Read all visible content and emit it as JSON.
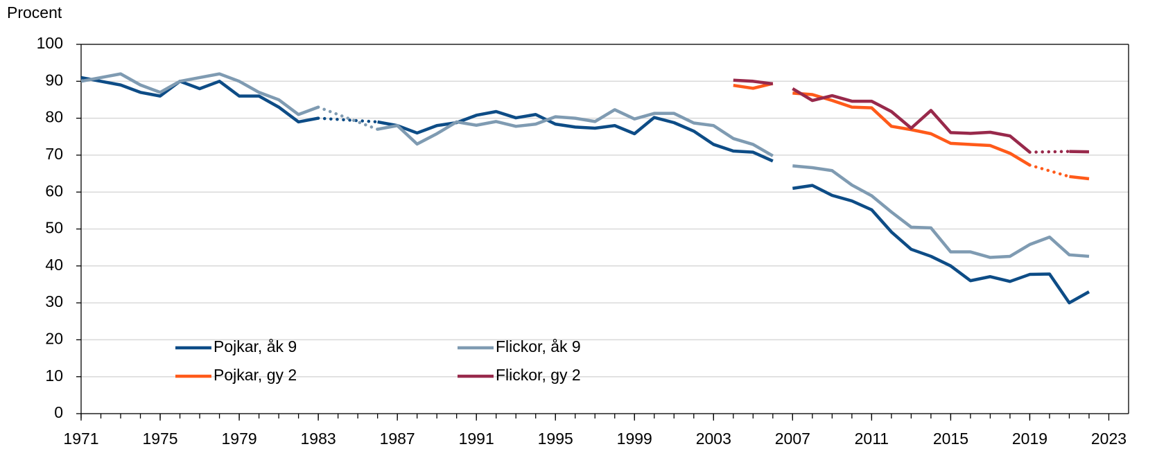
{
  "chart_data": {
    "type": "line",
    "y_axis_label": "Procent",
    "x": [
      1971,
      1972,
      1973,
      1974,
      1975,
      1976,
      1977,
      1978,
      1979,
      1980,
      1981,
      1982,
      1983,
      1984,
      1985,
      1986,
      1987,
      1988,
      1989,
      1990,
      1991,
      1992,
      1993,
      1994,
      1995,
      1996,
      1997,
      1998,
      1999,
      2000,
      2001,
      2002,
      2003,
      2004,
      2005,
      2006,
      2007,
      2008,
      2009,
      2010,
      2011,
      2012,
      2013,
      2014,
      2015,
      2016,
      2017,
      2018,
      2019,
      2020,
      2021,
      2022
    ],
    "series": [
      {
        "name": "Pojkar, åk 9",
        "color": "#0d4c86",
        "values": [
          91,
          90,
          89,
          87,
          86,
          90,
          88,
          90,
          86,
          86,
          83,
          79,
          80,
          null,
          null,
          79,
          78,
          76,
          78,
          78.8,
          80.8,
          81.8,
          80.1,
          81,
          78.4,
          77.6,
          77.3,
          78,
          75.8,
          80.2,
          78.8,
          76.5,
          72.9,
          71.1,
          70.8,
          68.4,
          61,
          61.8,
          59.1,
          57.6,
          55.2,
          49.2,
          44.5,
          42.6,
          40,
          36,
          37.1,
          35.8,
          37.7,
          37.8,
          30,
          33
        ]
      },
      {
        "name": "Flickor, åk 9",
        "color": "#7f9bb2",
        "values": [
          90,
          91,
          92,
          89,
          87,
          90,
          91,
          92,
          90,
          87,
          85,
          81,
          83,
          null,
          null,
          77,
          78,
          73,
          75.8,
          79,
          78.1,
          79.1,
          77.8,
          78.4,
          80.4,
          80,
          79.1,
          82.3,
          79.8,
          81.3,
          81.3,
          78.7,
          78,
          74.5,
          72.9,
          69.8,
          67.1,
          66.6,
          65.8,
          61.9,
          59,
          54.6,
          50.5,
          50.3,
          43.8,
          43.8,
          42.3,
          42.6,
          45.8,
          47.8,
          43,
          42.6
        ]
      },
      {
        "name": "Pojkar, gy 2",
        "color": "#ff5a1a",
        "values": [
          null,
          null,
          null,
          null,
          null,
          null,
          null,
          null,
          null,
          null,
          null,
          null,
          null,
          null,
          null,
          null,
          null,
          null,
          null,
          null,
          null,
          null,
          null,
          null,
          null,
          null,
          null,
          null,
          null,
          null,
          null,
          null,
          null,
          88.9,
          88.1,
          89.4,
          86.8,
          86.4,
          84.8,
          83,
          82.8,
          77.8,
          76.9,
          75.8,
          73.2,
          72.9,
          72.6,
          70.5,
          67.3,
          null,
          64.2,
          63.6
        ]
      },
      {
        "name": "Flickor, gy 2",
        "color": "#98294b",
        "values": [
          null,
          null,
          null,
          null,
          null,
          null,
          null,
          null,
          null,
          null,
          null,
          null,
          null,
          null,
          null,
          null,
          null,
          null,
          null,
          null,
          null,
          null,
          null,
          null,
          null,
          null,
          null,
          null,
          null,
          null,
          null,
          null,
          null,
          90.3,
          90,
          89.3,
          88,
          84.8,
          86.1,
          84.6,
          84.6,
          81.8,
          77.3,
          82.1,
          76.1,
          75.9,
          76.2,
          75.2,
          70.8,
          null,
          71,
          70.9
        ]
      }
    ],
    "series_break_after": 2006,
    "dotted_gaps": true,
    "xlim": [
      1971,
      2024
    ],
    "xticks": [
      1971,
      1975,
      1979,
      1983,
      1987,
      1991,
      1995,
      1999,
      2003,
      2007,
      2011,
      2015,
      2019,
      2023
    ],
    "ylim": [
      0,
      100
    ],
    "yticks": [
      0,
      10,
      20,
      30,
      40,
      50,
      60,
      70,
      80,
      90,
      100
    ],
    "grid": true
  }
}
